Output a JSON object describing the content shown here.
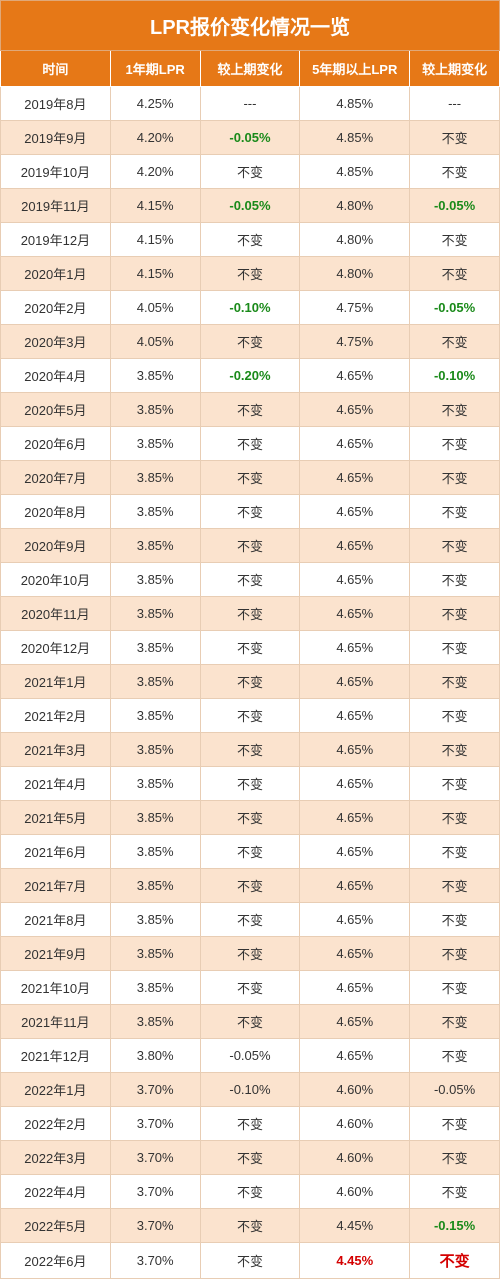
{
  "title": "LPR报价变化情况一览",
  "colors": {
    "header_bg": "#e67817",
    "header_fg": "#ffffff",
    "row_odd_bg": "#fbe3ce",
    "row_even_bg": "#ffffff",
    "border": "#e8cdb4",
    "neg_green": "#1a8a1a",
    "red": "#d40000",
    "text": "#333333"
  },
  "columns": [
    "时间",
    "1年期LPR",
    "较上期变化",
    "5年期以上LPR",
    "较上期变化"
  ],
  "column_widths_pct": [
    22,
    18,
    20,
    22,
    18
  ],
  "rows": [
    {
      "date": "2019年8月",
      "lpr1": "4.25%",
      "chg1": {
        "text": "---"
      },
      "lpr5": "4.85%",
      "chg5": {
        "text": "---"
      }
    },
    {
      "date": "2019年9月",
      "lpr1": "4.20%",
      "chg1": {
        "text": "-0.05%",
        "style": "neg-green"
      },
      "lpr5": "4.85%",
      "chg5": {
        "text": "不变"
      }
    },
    {
      "date": "2019年10月",
      "lpr1": "4.20%",
      "chg1": {
        "text": "不变"
      },
      "lpr5": "4.85%",
      "chg5": {
        "text": "不变"
      }
    },
    {
      "date": "2019年11月",
      "lpr1": "4.15%",
      "chg1": {
        "text": "-0.05%",
        "style": "neg-green"
      },
      "lpr5": "4.80%",
      "chg5": {
        "text": "-0.05%",
        "style": "neg-green"
      }
    },
    {
      "date": "2019年12月",
      "lpr1": "4.15%",
      "chg1": {
        "text": "不变"
      },
      "lpr5": "4.80%",
      "chg5": {
        "text": "不变"
      }
    },
    {
      "date": "2020年1月",
      "lpr1": "4.15%",
      "chg1": {
        "text": "不变"
      },
      "lpr5": "4.80%",
      "chg5": {
        "text": "不变"
      }
    },
    {
      "date": "2020年2月",
      "lpr1": "4.05%",
      "chg1": {
        "text": "-0.10%",
        "style": "neg-green"
      },
      "lpr5": "4.75%",
      "chg5": {
        "text": "-0.05%",
        "style": "neg-green"
      }
    },
    {
      "date": "2020年3月",
      "lpr1": "4.05%",
      "chg1": {
        "text": "不变"
      },
      "lpr5": "4.75%",
      "chg5": {
        "text": "不变"
      }
    },
    {
      "date": "2020年4月",
      "lpr1": "3.85%",
      "chg1": {
        "text": "-0.20%",
        "style": "neg-green"
      },
      "lpr5": "4.65%",
      "chg5": {
        "text": "-0.10%",
        "style": "neg-green"
      }
    },
    {
      "date": "2020年5月",
      "lpr1": "3.85%",
      "chg1": {
        "text": "不变"
      },
      "lpr5": "4.65%",
      "chg5": {
        "text": "不变"
      }
    },
    {
      "date": "2020年6月",
      "lpr1": "3.85%",
      "chg1": {
        "text": "不变"
      },
      "lpr5": "4.65%",
      "chg5": {
        "text": "不变"
      }
    },
    {
      "date": "2020年7月",
      "lpr1": "3.85%",
      "chg1": {
        "text": "不变"
      },
      "lpr5": "4.65%",
      "chg5": {
        "text": "不变"
      }
    },
    {
      "date": "2020年8月",
      "lpr1": "3.85%",
      "chg1": {
        "text": "不变"
      },
      "lpr5": "4.65%",
      "chg5": {
        "text": "不变"
      }
    },
    {
      "date": "2020年9月",
      "lpr1": "3.85%",
      "chg1": {
        "text": "不变"
      },
      "lpr5": "4.65%",
      "chg5": {
        "text": "不变"
      }
    },
    {
      "date": "2020年10月",
      "lpr1": "3.85%",
      "chg1": {
        "text": "不变"
      },
      "lpr5": "4.65%",
      "chg5": {
        "text": "不变"
      }
    },
    {
      "date": "2020年11月",
      "lpr1": "3.85%",
      "chg1": {
        "text": "不变"
      },
      "lpr5": "4.65%",
      "chg5": {
        "text": "不变"
      }
    },
    {
      "date": "2020年12月",
      "lpr1": "3.85%",
      "chg1": {
        "text": "不变"
      },
      "lpr5": "4.65%",
      "chg5": {
        "text": "不变"
      }
    },
    {
      "date": "2021年1月",
      "lpr1": "3.85%",
      "chg1": {
        "text": "不变"
      },
      "lpr5": "4.65%",
      "chg5": {
        "text": "不变"
      }
    },
    {
      "date": "2021年2月",
      "lpr1": "3.85%",
      "chg1": {
        "text": "不变"
      },
      "lpr5": "4.65%",
      "chg5": {
        "text": "不变"
      }
    },
    {
      "date": "2021年3月",
      "lpr1": "3.85%",
      "chg1": {
        "text": "不变"
      },
      "lpr5": "4.65%",
      "chg5": {
        "text": "不变"
      }
    },
    {
      "date": "2021年4月",
      "lpr1": "3.85%",
      "chg1": {
        "text": "不变"
      },
      "lpr5": "4.65%",
      "chg5": {
        "text": "不变"
      }
    },
    {
      "date": "2021年5月",
      "lpr1": "3.85%",
      "chg1": {
        "text": "不变"
      },
      "lpr5": "4.65%",
      "chg5": {
        "text": "不变"
      }
    },
    {
      "date": "2021年6月",
      "lpr1": "3.85%",
      "chg1": {
        "text": "不变"
      },
      "lpr5": "4.65%",
      "chg5": {
        "text": "不变"
      }
    },
    {
      "date": "2021年7月",
      "lpr1": "3.85%",
      "chg1": {
        "text": "不变"
      },
      "lpr5": "4.65%",
      "chg5": {
        "text": "不变"
      }
    },
    {
      "date": "2021年8月",
      "lpr1": "3.85%",
      "chg1": {
        "text": "不变"
      },
      "lpr5": "4.65%",
      "chg5": {
        "text": "不变"
      }
    },
    {
      "date": "2021年9月",
      "lpr1": "3.85%",
      "chg1": {
        "text": "不变"
      },
      "lpr5": "4.65%",
      "chg5": {
        "text": "不变"
      }
    },
    {
      "date": "2021年10月",
      "lpr1": "3.85%",
      "chg1": {
        "text": "不变"
      },
      "lpr5": "4.65%",
      "chg5": {
        "text": "不变"
      }
    },
    {
      "date": "2021年11月",
      "lpr1": "3.85%",
      "chg1": {
        "text": "不变"
      },
      "lpr5": "4.65%",
      "chg5": {
        "text": "不变"
      }
    },
    {
      "date": "2021年12月",
      "lpr1": "3.80%",
      "chg1": {
        "text": "-0.05%"
      },
      "lpr5": "4.65%",
      "chg5": {
        "text": "不变"
      }
    },
    {
      "date": "2022年1月",
      "lpr1": "3.70%",
      "chg1": {
        "text": "-0.10%"
      },
      "lpr5": "4.60%",
      "chg5": {
        "text": "-0.05%"
      }
    },
    {
      "date": "2022年2月",
      "lpr1": "3.70%",
      "chg1": {
        "text": "不变"
      },
      "lpr5": "4.60%",
      "chg5": {
        "text": "不变"
      }
    },
    {
      "date": "2022年3月",
      "lpr1": "3.70%",
      "chg1": {
        "text": "不变"
      },
      "lpr5": "4.60%",
      "chg5": {
        "text": "不变"
      }
    },
    {
      "date": "2022年4月",
      "lpr1": "3.70%",
      "chg1": {
        "text": "不变"
      },
      "lpr5": "4.60%",
      "chg5": {
        "text": "不变"
      }
    },
    {
      "date": "2022年5月",
      "lpr1": "3.70%",
      "chg1": {
        "text": "不变"
      },
      "lpr5": "4.45%",
      "chg5": {
        "text": "-0.15%",
        "style": "neg-green"
      }
    },
    {
      "date": "2022年6月",
      "lpr1": "3.70%",
      "chg1": {
        "text": "不变"
      },
      "lpr5": {
        "text": "4.45%",
        "style": "red-bold"
      },
      "chg5": {
        "text": "不变",
        "style": "big-red"
      },
      "last": true
    }
  ]
}
